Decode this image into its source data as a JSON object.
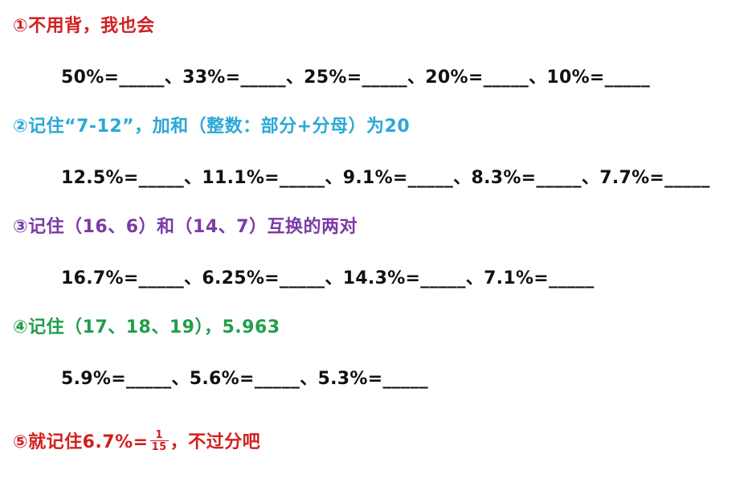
{
  "section1": {
    "heading": "①不用背，我也会",
    "formula": "50%=_____、33%=_____、25%=_____、20%=_____、10%=_____"
  },
  "section2": {
    "heading": "②记住“7-12”，加和（整数：部分+分母）为20",
    "formula": "12.5%=_____、11.1%=_____、9.1%=_____、8.3%=_____、7.7%=_____"
  },
  "section3": {
    "heading": "③记住（16、6）和（14、7）互换的两对",
    "formula": "16.7%=_____、6.25%=_____、14.3%=_____、7.1%=_____"
  },
  "section4": {
    "heading": "④记住（17、18、19），5.963",
    "formula": "5.9%=_____、5.6%=_____、5.3%=_____"
  },
  "section5": {
    "heading_prefix": "⑤就记住6.7%=",
    "fraction_numerator": "1",
    "fraction_denominator": "15",
    "heading_suffix": "，不过分吧"
  },
  "colors": {
    "red": "#d21f1f",
    "blue": "#2aa8d8",
    "purple": "#7b3aa6",
    "green": "#1f9f4a",
    "black": "#111111"
  }
}
